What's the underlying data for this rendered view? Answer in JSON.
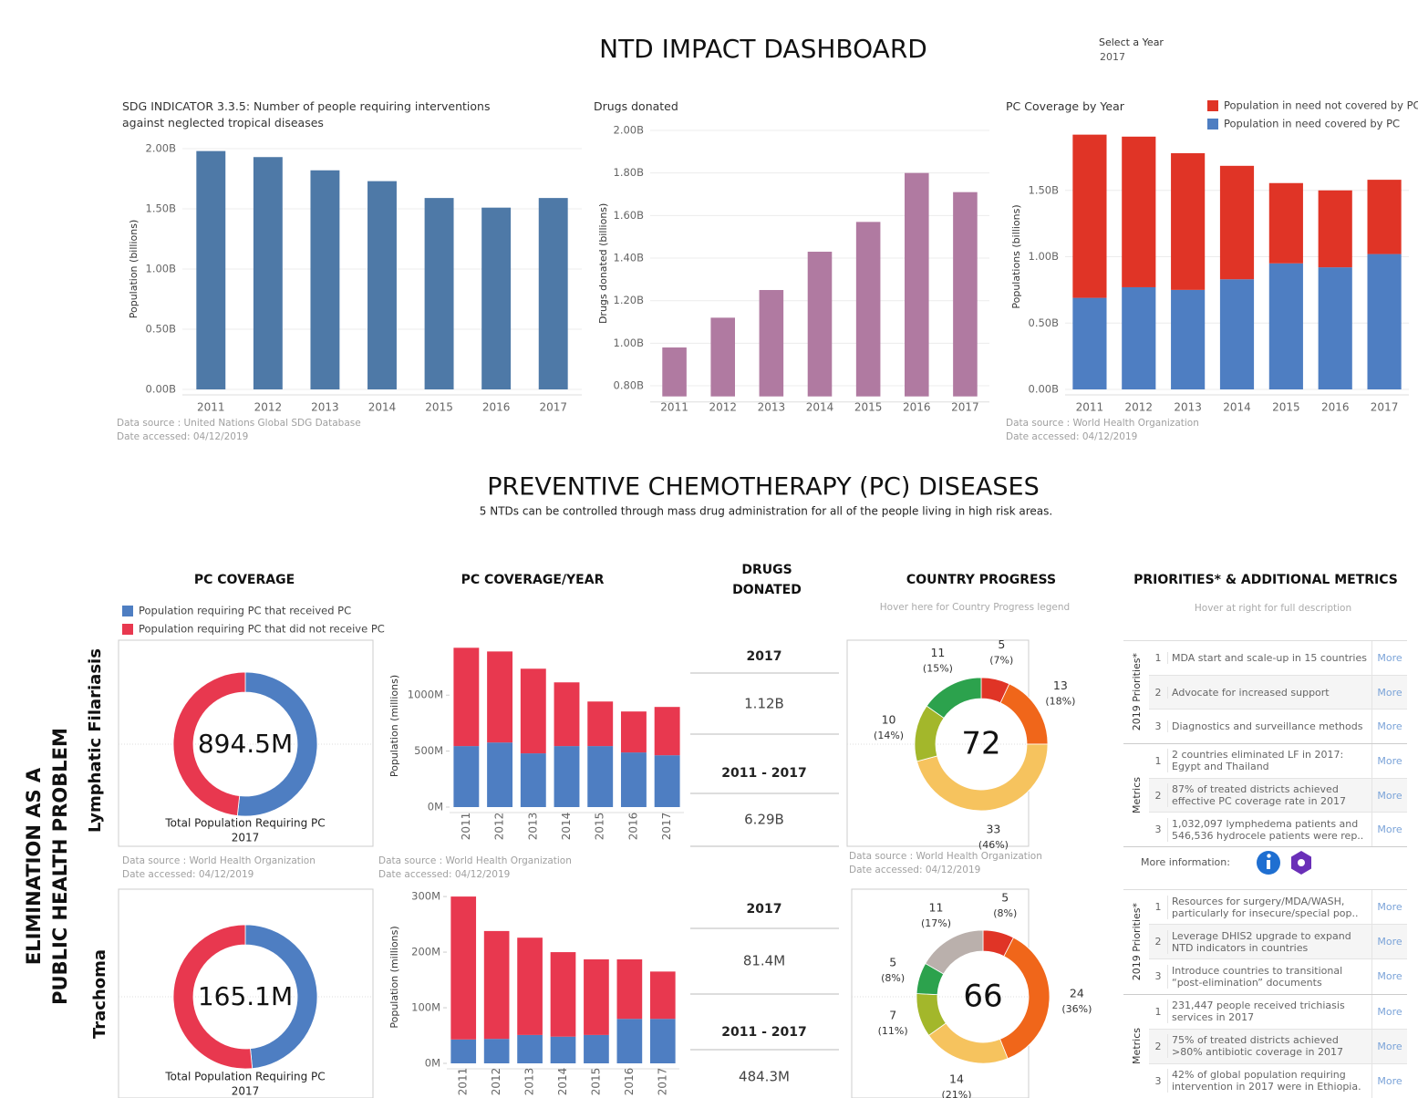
{
  "header": {
    "title": "NTD IMPACT DASHBOARD",
    "select_label": "Select a Year",
    "select_value": "2017"
  },
  "chart_data": [
    {
      "type": "bar",
      "title": "SDG INDICATOR 3.3.5: Number of people requiring interventions against neglected tropical diseases",
      "y_label": "Population (billions)",
      "categories": [
        "2011",
        "2012",
        "2013",
        "2014",
        "2015",
        "2016",
        "2017"
      ],
      "values": [
        1.98,
        1.93,
        1.82,
        1.73,
        1.59,
        1.51,
        1.59
      ],
      "color": "#4e79a7",
      "ylim": [
        0,
        2.0
      ],
      "yticks": [
        {
          "value": 0,
          "label": "0.00B"
        },
        {
          "value": 0.5,
          "label": "0.50B"
        },
        {
          "value": 1,
          "label": "1.00B"
        },
        {
          "value": 1.5,
          "label": "1.50B"
        },
        {
          "value": 2,
          "label": "2.00B"
        }
      ],
      "grid": true,
      "source": [
        "Data source : United Nations Global SDG Database",
        "Date accessed: 04/12/2019"
      ]
    },
    {
      "type": "bar",
      "title": "Drugs donated",
      "y_label": "Drugs donated (billions)",
      "categories": [
        "2011",
        "2012",
        "2013",
        "2014",
        "2015",
        "2016",
        "2017"
      ],
      "values": [
        0.98,
        1.12,
        1.25,
        1.43,
        1.57,
        1.8,
        1.71
      ],
      "color": "#b07aa1",
      "ylim": [
        0.75,
        2.0
      ],
      "yticks": [
        {
          "value": 0.8,
          "label": "0.80B"
        },
        {
          "value": 1,
          "label": "1.00B"
        },
        {
          "value": 1.2,
          "label": "1.20B"
        },
        {
          "value": 1.4,
          "label": "1.40B"
        },
        {
          "value": 1.6,
          "label": "1.60B"
        },
        {
          "value": 1.8,
          "label": "1.80B"
        },
        {
          "value": 2,
          "label": "2.00B"
        }
      ],
      "grid": true
    },
    {
      "type": "stacked_bar",
      "title": "PC Coverage by Year",
      "y_label": "Populations (billions)",
      "categories": [
        "2011",
        "2012",
        "2013",
        "2014",
        "2015",
        "2016",
        "2017"
      ],
      "series": [
        {
          "name": "Population in need covered by PC",
          "color": "#4e7ec2",
          "values": [
            0.69,
            0.77,
            0.75,
            0.83,
            0.95,
            0.92,
            1.02
          ]
        },
        {
          "name": "Population in need not covered by PC",
          "color": "#e03426",
          "values": [
            1.23,
            1.135,
            1.03,
            0.855,
            0.605,
            0.58,
            0.56
          ]
        }
      ],
      "ylim": [
        0,
        2.0
      ],
      "yticks": [
        {
          "value": 0,
          "label": "0.00B"
        },
        {
          "value": 0.5,
          "label": "0.50B"
        },
        {
          "value": 1,
          "label": "1.00B"
        },
        {
          "value": 1.5,
          "label": "1.50B"
        }
      ],
      "grid": true,
      "legend": "top-right",
      "source": [
        "Data source : World Health Organization",
        "Date accessed: 04/12/2019"
      ]
    },
    {
      "type": "donut",
      "labels": [
        "Population requiring PC that received PC",
        "Population requiring PC that did not receive PC"
      ],
      "colors": [
        "#4e7ec2",
        "#e8384f"
      ],
      "values": [
        463.0,
        431.5
      ],
      "center_label": "894.5M",
      "caption": "Total Population Requiring PC",
      "caption_year": "2017",
      "source": [
        "Data source : World Health Organization",
        "Date accessed: 04/12/2019"
      ]
    },
    {
      "type": "stacked_bar",
      "y_label": "Population (millions)",
      "categories": [
        "2011",
        "2012",
        "2013",
        "2014",
        "2015",
        "2016",
        "2017"
      ],
      "series": [
        {
          "color": "#4e7ec2",
          "values": [
            545,
            577,
            480,
            545,
            545,
            488,
            463.0
          ]
        },
        {
          "color": "#e8384f",
          "values": [
            878,
            813,
            756,
            569,
            398,
            366,
            431.5
          ]
        }
      ],
      "ylim": [
        0,
        1450
      ],
      "yticks": [
        {
          "value": 0,
          "label": "0M"
        },
        {
          "value": 500,
          "label": "500M"
        },
        {
          "value": 1000,
          "label": "1000M"
        }
      ],
      "grid": false,
      "source": [
        "Data source : World Health Organization",
        "Date accessed: 04/12/2019"
      ]
    },
    {
      "type": "donut",
      "values": [
        5,
        13,
        33,
        10,
        11
      ],
      "percent_labels": [
        "(7%)",
        "(18%)",
        "(46%)",
        "(14%)",
        "(15%)"
      ],
      "colors": [
        "#e03426",
        "#f0661a",
        "#f6c35e",
        "#a3b72b",
        "#2ca24d"
      ],
      "center_label": "72",
      "source": [
        "Data source : World Health Organization",
        "Date accessed: 04/12/2019"
      ]
    },
    {
      "type": "donut",
      "colors": [
        "#4e7ec2",
        "#e8384f"
      ],
      "values": [
        80.0,
        85.1
      ],
      "center_label": "165.1M",
      "caption": "Total Population Requiring PC",
      "caption_year": "2017"
    },
    {
      "type": "stacked_bar",
      "y_label": "Population (millions)",
      "categories": [
        "2011",
        "2012",
        "2013",
        "2014",
        "2015",
        "2016",
        "2017"
      ],
      "series": [
        {
          "color": "#4e7ec2",
          "values": [
            43,
            44,
            51,
            48,
            51,
            80,
            80.0
          ]
        },
        {
          "color": "#e8384f",
          "values": [
            257,
            194,
            175,
            152,
            136,
            107,
            85.1
          ]
        }
      ],
      "ylim": [
        0,
        310
      ],
      "yticks": [
        {
          "value": 0,
          "label": "0M"
        },
        {
          "value": 100,
          "label": "100M"
        },
        {
          "value": 200,
          "label": "200M"
        },
        {
          "value": 300,
          "label": "300M"
        }
      ],
      "grid": false
    },
    {
      "type": "donut",
      "values": [
        5,
        24,
        14,
        7,
        5,
        11
      ],
      "percent_labels": [
        "(8%)",
        "(36%)",
        "(21%)",
        "(11%)",
        "(8%)",
        "(17%)"
      ],
      "colors": [
        "#e03426",
        "#f0661a",
        "#f6c35e",
        "#a3b72b",
        "#2ca24d",
        "#bab0ac"
      ],
      "center_label": "66"
    }
  ],
  "section": {
    "title": "PREVENTIVE CHEMOTHERAPY (PC) DISEASES",
    "subtitle": "5 NTDs can be controlled through mass drug administration for all of the people living in high risk areas."
  },
  "row_header": [
    "ELIMINATION AS A",
    "PUBLIC HEALTH PROBLEM"
  ],
  "columns": {
    "pc_coverage": "PC COVERAGE",
    "pc_coverage_year": "PC COVERAGE/YEAR",
    "drugs_donated": [
      "DRUGS",
      "DONATED"
    ],
    "country_progress": "COUNTRY PROGRESS",
    "country_progress_hint": "Hover here for Country Progress legend",
    "priorities": "PRIORITIES* & ADDITIONAL METRICS",
    "priorities_hint": "Hover at right for full description"
  },
  "rows": [
    {
      "label": "Lymphatic Filariasis",
      "drugs": [
        {
          "period": "2017",
          "value": "1.12B"
        },
        {
          "period": "2011 - 2017",
          "value": "6.29B"
        }
      ],
      "groups": [
        {
          "label": "2019 Priorities*",
          "items": [
            {
              "n": "1",
              "text": "MDA start and scale-up in 15 countries",
              "link": "More"
            },
            {
              "n": "2",
              "text": "Advocate for increased support",
              "link": "More"
            },
            {
              "n": "3",
              "text": "Diagnostics and surveillance methods",
              "link": "More"
            }
          ]
        },
        {
          "label": "Metrics",
          "items": [
            {
              "n": "1",
              "text": "2 countries eliminated LF in 2017: Egypt and Thailand",
              "link": "More"
            },
            {
              "n": "2",
              "text": "87% of treated districts achieved effective PC coverage rate in 2017",
              "link": "More"
            },
            {
              "n": "3",
              "text": "1,032,097 lymphedema patients and 546,536 hydrocele patients were rep..",
              "link": "More"
            }
          ]
        }
      ],
      "more_information": "More information:"
    },
    {
      "label": "Trachoma",
      "drugs": [
        {
          "period": "2017",
          "value": "81.4M"
        },
        {
          "period": "2011 - 2017",
          "value": "484.3M"
        }
      ],
      "groups": [
        {
          "label": "2019 Priorities*",
          "items": [
            {
              "n": "1",
              "text": "Resources for surgery/MDA/WASH, particularly for insecure/special pop..",
              "link": "More"
            },
            {
              "n": "2",
              "text": "Leverage DHIS2 upgrade to expand NTD indicators in countries",
              "link": "More"
            },
            {
              "n": "3",
              "text": "Introduce countries to transitional “post-elimination” documents",
              "link": "More"
            }
          ]
        },
        {
          "label": "Metrics",
          "items": [
            {
              "n": "1",
              "text": "231,447 people received trichiasis services in 2017",
              "link": "More"
            },
            {
              "n": "2",
              "text": "75% of treated districts achieved >80% antibiotic coverage in 2017",
              "link": "More"
            },
            {
              "n": "3",
              "text": "42% of global population requiring intervention in 2017 were in Ethiopia.",
              "link": "More"
            }
          ]
        }
      ]
    }
  ]
}
